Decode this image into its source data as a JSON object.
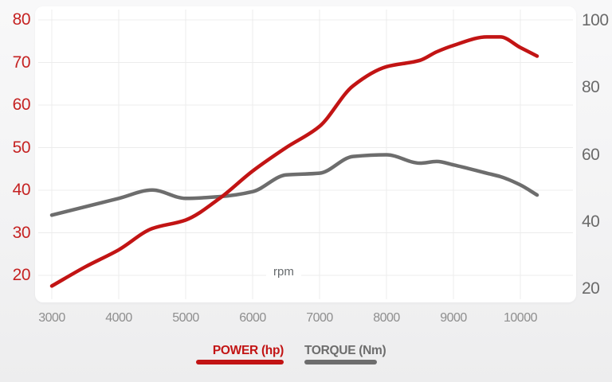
{
  "chart_data": {
    "type": "line",
    "xlabel": "rpm",
    "x": [
      3000,
      3500,
      4000,
      4500,
      5000,
      5500,
      6000,
      6500,
      7000,
      7500,
      8000,
      8500,
      8750,
      9000,
      9500,
      9700,
      10000,
      10250
    ],
    "series": [
      {
        "name": "POWER (hp)",
        "axis": "left",
        "color": "#c21414",
        "values": [
          17.5,
          22,
          26,
          31,
          33,
          38,
          44.5,
          50,
          55,
          64.5,
          69,
          70.5,
          72.5,
          74,
          76,
          76,
          73.5,
          71.5
        ]
      },
      {
        "name": "TORQUE (Nm)",
        "axis": "right",
        "color": "#6d6d6d",
        "values": [
          42,
          44.5,
          47,
          49.5,
          47,
          47.5,
          49,
          54,
          54.5,
          59.5,
          60,
          57.5,
          58,
          57,
          54.5,
          53.5,
          51,
          48
        ]
      }
    ],
    "x_axis": {
      "ticks": [
        3000,
        4000,
        5000,
        6000,
        7000,
        8000,
        9000,
        10000
      ],
      "label_color": "#8e8e8e"
    },
    "left_axis": {
      "ticks": [
        20,
        30,
        40,
        50,
        60,
        70,
        80
      ],
      "range": [
        20,
        80
      ],
      "label_color": "#c52222"
    },
    "right_axis": {
      "ticks": [
        20,
        40,
        60,
        80,
        100
      ],
      "range": [
        20,
        100
      ],
      "label_color": "#6a6a6a"
    },
    "grid": true,
    "grid_color": "#ececec",
    "legend_position": "bottom"
  },
  "axis_title": {
    "text": "rpm"
  },
  "legend": {
    "items": [
      {
        "label": "POWER (hp)",
        "color": "#c21414"
      },
      {
        "label": "TORQUE (Nm)",
        "color": "#6d6d6d"
      }
    ]
  }
}
